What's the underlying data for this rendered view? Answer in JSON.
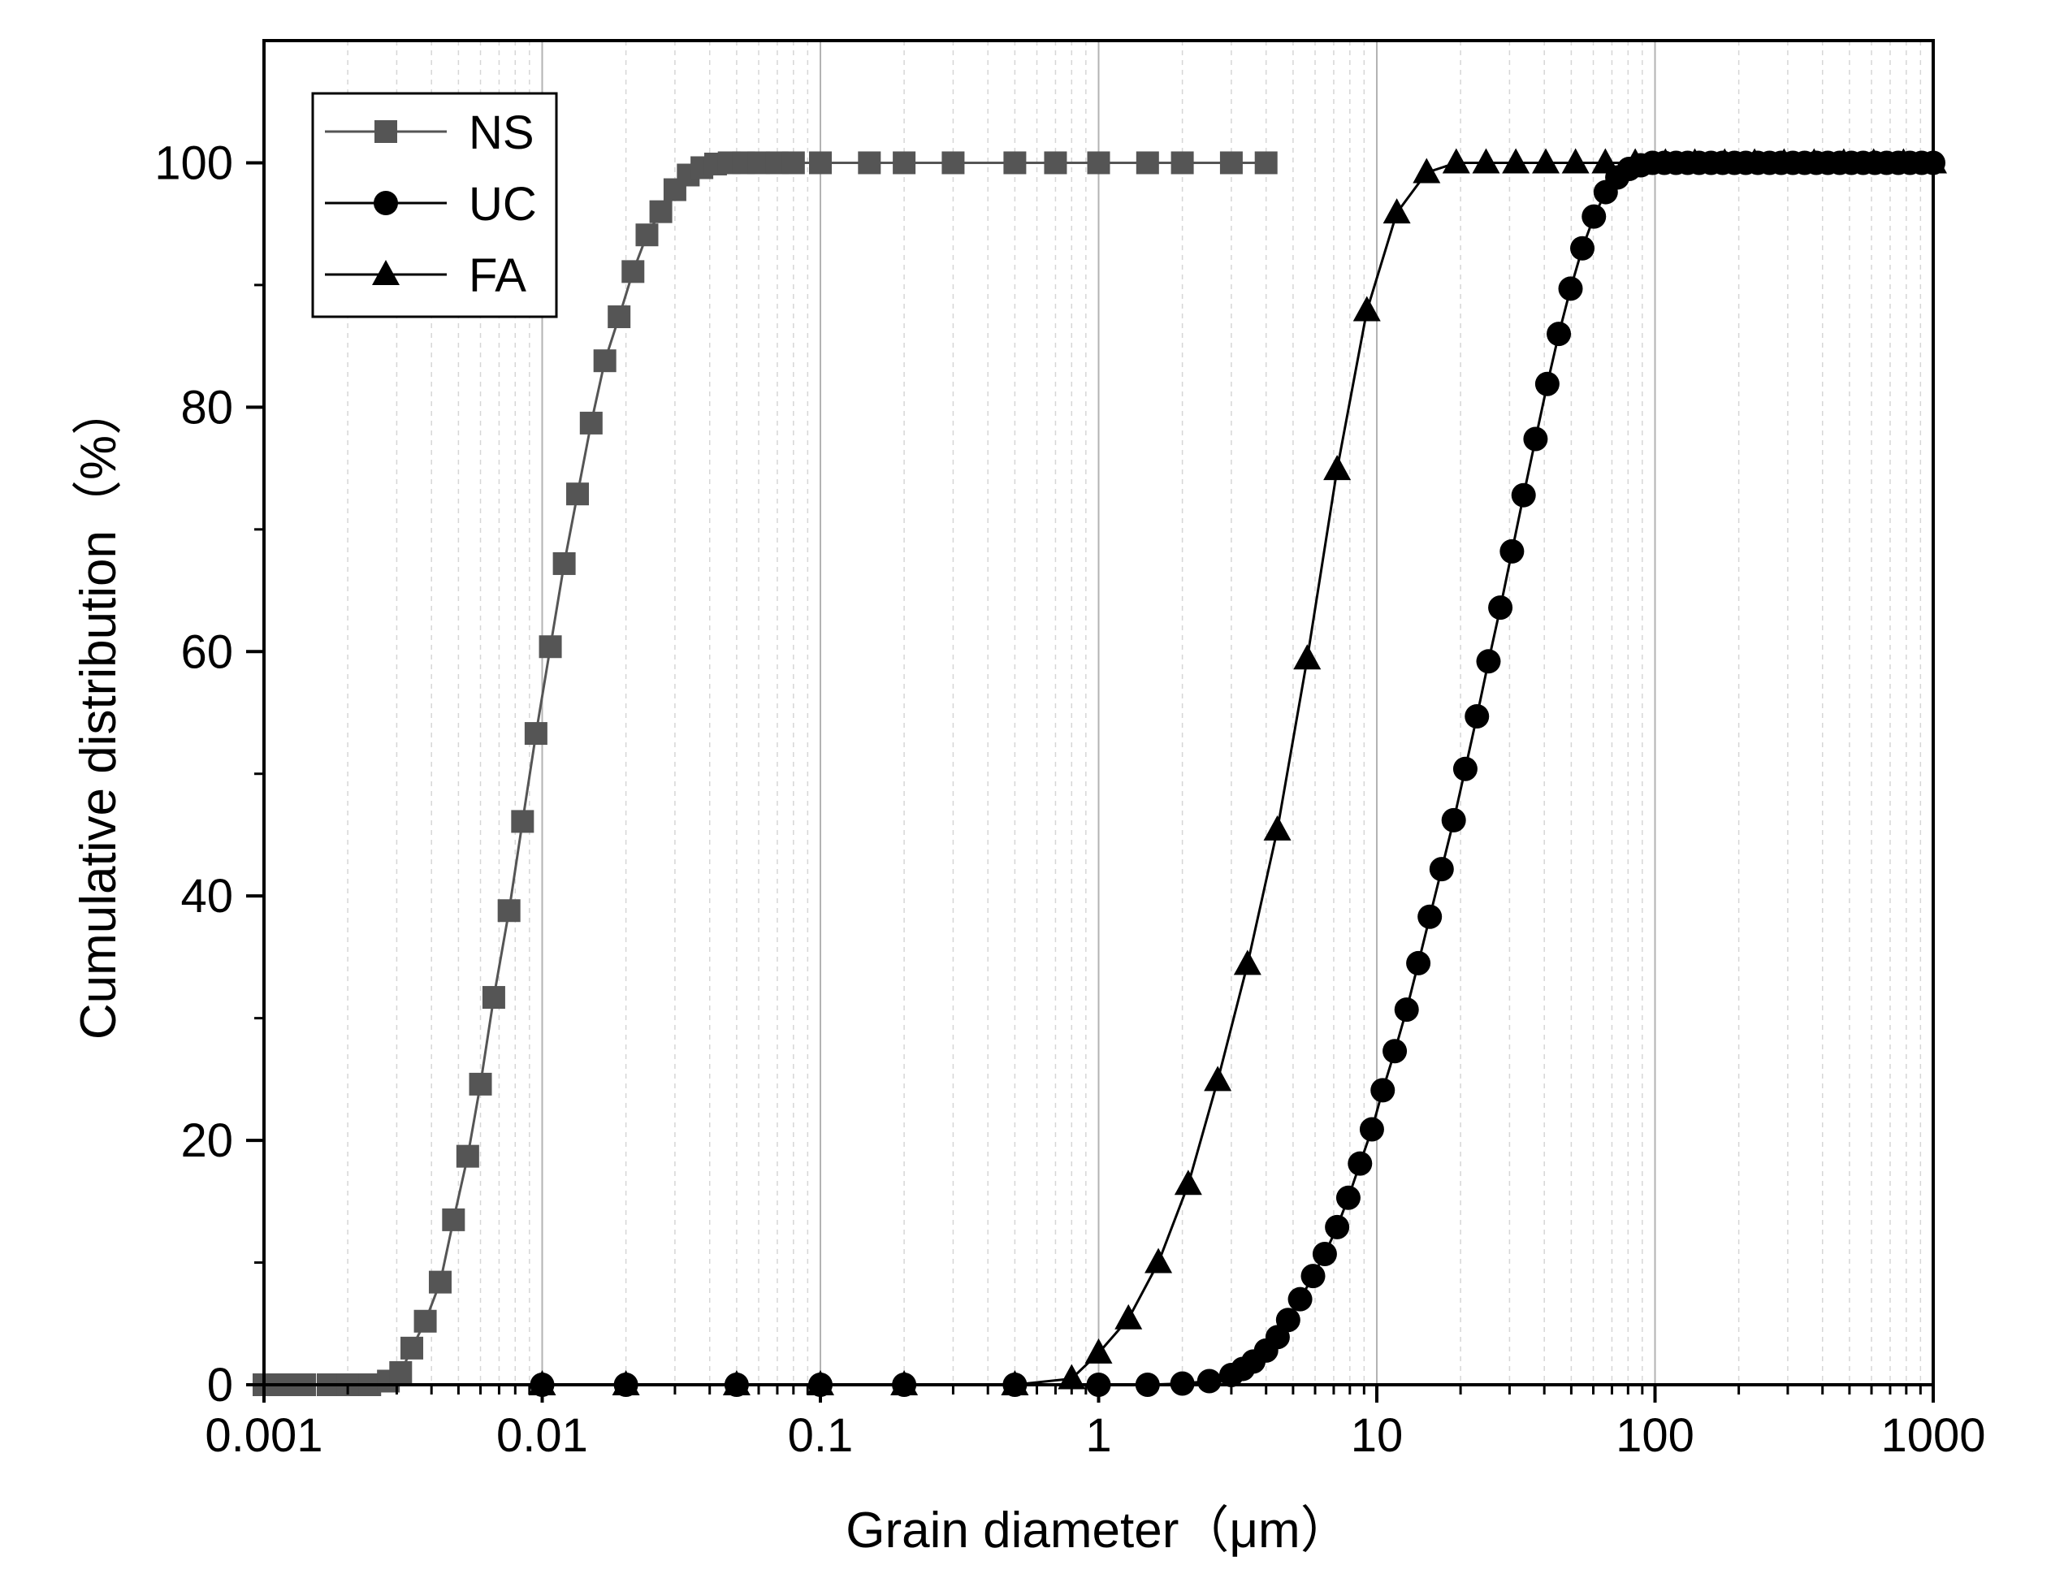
{
  "chart_data": {
    "type": "line",
    "title": "",
    "xlabel": "Grain diameter（μm）",
    "ylabel": "Cumulative distribution（%）",
    "xscale": "log",
    "xlim": [
      0.001,
      1000
    ],
    "ylim": [
      0,
      110
    ],
    "x_ticks": [
      0.001,
      0.01,
      0.1,
      1,
      10,
      100,
      1000
    ],
    "x_tick_labels": [
      "0.001",
      "0.01",
      "0.1",
      "1",
      "10",
      "100",
      "1000"
    ],
    "y_ticks": [
      0,
      20,
      40,
      60,
      80,
      100
    ],
    "y_tick_labels": [
      "0",
      "20",
      "40",
      "60",
      "80",
      "100"
    ],
    "grid": "vertical",
    "legend_position": "top-left",
    "series": [
      {
        "name": "NS",
        "marker": "square",
        "color": "#555555",
        "x": [
          0.001,
          0.0012,
          0.0014,
          0.0017,
          0.002,
          0.0024,
          0.0028,
          0.0031,
          0.0034,
          0.0038,
          0.0043,
          0.0048,
          0.0054,
          0.006,
          0.0067,
          0.0076,
          0.0085,
          0.0095,
          0.0107,
          0.012,
          0.0134,
          0.015,
          0.0168,
          0.0189,
          0.0212,
          0.0238,
          0.0267,
          0.03,
          0.0335,
          0.0375,
          0.042,
          0.047,
          0.053,
          0.06,
          0.07,
          0.08,
          0.1,
          0.15,
          0.2,
          0.3,
          0.5,
          0.7,
          1,
          1.5,
          2,
          3,
          4
        ],
        "y": [
          0,
          0,
          0,
          0,
          0,
          0,
          0.3,
          1.0,
          3.0,
          5.2,
          8.4,
          13.5,
          18.7,
          24.6,
          31.7,
          38.8,
          46.1,
          53.3,
          60.4,
          67.2,
          72.9,
          78.7,
          83.8,
          87.4,
          91.1,
          94.1,
          96.0,
          97.8,
          99.0,
          99.6,
          99.9,
          100,
          100,
          100,
          100,
          100,
          100,
          100,
          100,
          100,
          100,
          100,
          100,
          100,
          100,
          100,
          100
        ]
      },
      {
        "name": "UC",
        "marker": "circle",
        "color": "#000000",
        "x": [
          0.01,
          0.02,
          0.05,
          0.1,
          0.2,
          0.5,
          1,
          1.5,
          2,
          2.5,
          3,
          3.3,
          3.6,
          4,
          4.4,
          4.8,
          5.3,
          5.9,
          6.5,
          7.2,
          7.9,
          8.7,
          9.6,
          10.5,
          11.6,
          12.8,
          14.1,
          15.5,
          17.1,
          18.9,
          20.8,
          22.9,
          25.2,
          27.8,
          30.6,
          33.7,
          37.2,
          41,
          45.1,
          49.7,
          54.8,
          60.3,
          66.5,
          73.2,
          80.7,
          88.9,
          98,
          108,
          119,
          131,
          144,
          159,
          175,
          193,
          212,
          234,
          258,
          284,
          313,
          345,
          380,
          418,
          461,
          508,
          560,
          617,
          680,
          749,
          825,
          909,
          1000
        ],
        "y": [
          0,
          0,
          0,
          0,
          0,
          0,
          0,
          0,
          0.1,
          0.3,
          0.8,
          1.3,
          1.9,
          2.8,
          3.9,
          5.3,
          7.0,
          8.9,
          10.7,
          12.9,
          15.3,
          18.1,
          20.9,
          24.1,
          27.3,
          30.7,
          34.5,
          38.3,
          42.2,
          46.2,
          50.4,
          54.7,
          59.2,
          63.6,
          68.2,
          72.8,
          77.4,
          81.9,
          86.0,
          89.7,
          93.0,
          95.6,
          97.6,
          98.8,
          99.5,
          99.8,
          100,
          100,
          100,
          100,
          100,
          100,
          100,
          100,
          100,
          100,
          100,
          100,
          100,
          100,
          100,
          100,
          100,
          100,
          100,
          100,
          100,
          100,
          100,
          100,
          100
        ]
      },
      {
        "name": "FA",
        "marker": "triangle",
        "color": "#000000",
        "x": [
          0.01,
          0.02,
          0.05,
          0.1,
          0.2,
          0.5,
          0.8,
          1.0,
          1.28,
          1.64,
          2.1,
          2.68,
          3.43,
          4.39,
          5.62,
          7.2,
          9.21,
          11.8,
          15.1,
          19.3,
          24.7,
          31.6,
          40.5,
          51.8,
          66.3,
          84.9,
          109,
          139,
          178,
          228,
          291,
          373,
          477,
          611,
          782,
          1000
        ],
        "y": [
          0,
          0,
          0,
          0,
          0,
          0,
          0.5,
          2.6,
          5.4,
          10.0,
          16.4,
          24.9,
          34.4,
          45.4,
          59.4,
          74.9,
          87.9,
          95.9,
          99.2,
          100,
          100,
          100,
          100,
          100,
          100,
          100,
          100,
          100,
          100,
          100,
          100,
          100,
          100,
          100,
          100,
          100
        ]
      }
    ]
  }
}
